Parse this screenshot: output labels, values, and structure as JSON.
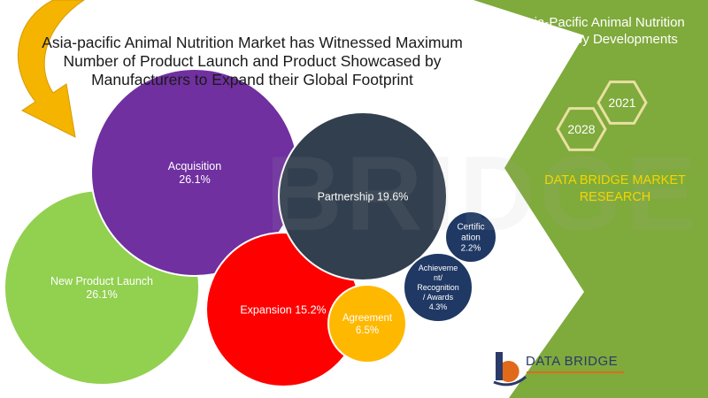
{
  "title": "Asia-pacific Animal Nutrition Market has Witnessed Maximum Number of Product Launch and Product Showcased by Manufacturers to Expand their Global Footprint",
  "side_panel": {
    "title": "Asia-Pacific Animal Nutrition Market, By Developments",
    "years": [
      "2028",
      "2021"
    ],
    "brand": "DATA BRIDGE MARKET RESEARCH",
    "colors": {
      "panel": "#7faa3c",
      "hex_outline": "#e8e0a0",
      "brand_text": "#f2d600"
    }
  },
  "logo": {
    "text": "DATA BRIDGE"
  },
  "watermark": "BRIDGE",
  "chart_data": {
    "type": "bubble",
    "title": "Asia-pacific Animal Nutrition Market has Witnessed Maximum Number of Product Launch and Product Showcased by Manufacturers to Expand their Global Footprint",
    "series": [
      {
        "name": "New Product Launch",
        "label": [
          "New Product Launch",
          "26.1%"
        ],
        "value": 26.1,
        "color": "#92d050",
        "text_color": "#ffffff"
      },
      {
        "name": "Acquisition",
        "label": [
          "Acquisition",
          "26.1%"
        ],
        "value": 26.1,
        "color": "#7030a0",
        "text_color": "#ffffff"
      },
      {
        "name": "Expansion",
        "label": [
          "Expansion 15.2%"
        ],
        "value": 15.2,
        "color": "#ff0000",
        "text_color": "#ffffff"
      },
      {
        "name": "Partnership",
        "label": [
          "Partnership 19.6%"
        ],
        "value": 19.6,
        "color": "#323f4f",
        "text_color": "#ffffff"
      },
      {
        "name": "Agreement",
        "label": [
          "Agreement",
          "6.5%"
        ],
        "value": 6.5,
        "color": "#ffb800",
        "text_color": "#ffffff"
      },
      {
        "name": "Achievement/Recognition/Awards",
        "label": [
          "Achieveme",
          "nt/",
          "Recognition",
          "/ Awards",
          "4.3%"
        ],
        "value": 4.3,
        "color": "#1f3864",
        "text_color": "#ffffff"
      },
      {
        "name": "Certification",
        "label": [
          "Certific",
          "ation",
          "2.2%"
        ],
        "value": 2.2,
        "color": "#1f3864",
        "text_color": "#ffffff"
      }
    ]
  }
}
